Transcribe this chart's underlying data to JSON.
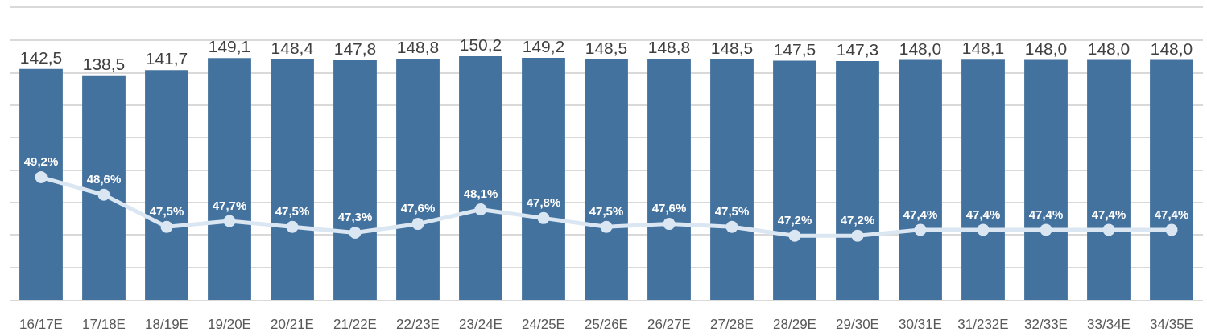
{
  "chart_data": {
    "type": "bar",
    "categories": [
      "16/17E",
      "17/18E",
      "18/19E",
      "19/20E",
      "20/21E",
      "21/22E",
      "22/23E",
      "23/24E",
      "24/25E",
      "25/26E",
      "26/27E",
      "27/28E",
      "28/29E",
      "29/30E",
      "30/31E",
      "31/232E",
      "32/33E",
      "33/34E",
      "34/35E"
    ],
    "series": [
      {
        "color": "#44729e",
        "values": [
          142.5,
          138.5,
          141.7,
          149.1,
          148.4,
          147.8,
          148.8,
          150.2,
          149.2,
          148.5,
          148.8,
          148.5,
          147.5,
          147.3,
          148.0,
          148.1,
          148.0,
          148.0,
          148.0
        ],
        "value_labels": [
          "142,5",
          "138,5",
          "141,7",
          "149,1",
          "148,4",
          "147,8",
          "148,8",
          "150,2",
          "149,2",
          "148,5",
          "148,8",
          "148,5",
          "147,5",
          "147,3",
          "148,0",
          "148,1",
          "148,0",
          "148,0",
          "148,0"
        ]
      },
      {
        "type": "line",
        "axis": "y2",
        "color": "#dbe6f3",
        "marker": "circle",
        "line_style": "solid",
        "values": [
          49.2,
          48.6,
          47.5,
          47.7,
          47.5,
          47.3,
          47.6,
          48.1,
          47.8,
          47.5,
          47.6,
          47.5,
          47.2,
          47.2,
          47.4,
          47.4,
          47.4,
          47.4,
          47.4
        ],
        "value_labels": [
          "49,2%",
          "48,6%",
          "47,5%",
          "47,7%",
          "47,5%",
          "47,3%",
          "47,6%",
          "48,1%",
          "47,8%",
          "47,5%",
          "47,6%",
          "47,5%",
          "47,2%",
          "47,2%",
          "47,4%",
          "47,4%",
          "47,4%",
          "47,4%",
          "47,4%"
        ]
      }
    ],
    "ylim": [
      0,
      180
    ],
    "yticks": [
      {
        "value": 0,
        "label": null
      },
      {
        "value": 20,
        "label": null
      },
      {
        "value": 40,
        "label": null
      },
      {
        "value": 60,
        "label": null
      },
      {
        "value": 80,
        "label": null
      },
      {
        "value": 100,
        "label": null
      },
      {
        "value": 120,
        "label": null
      },
      {
        "value": 140,
        "label": null
      },
      {
        "value": 160,
        "label": null
      },
      {
        "value": 180,
        "label": null
      }
    ],
    "y2lim": [
      45,
      55
    ],
    "grid": "y",
    "tick_labels": "x",
    "legend": false
  }
}
